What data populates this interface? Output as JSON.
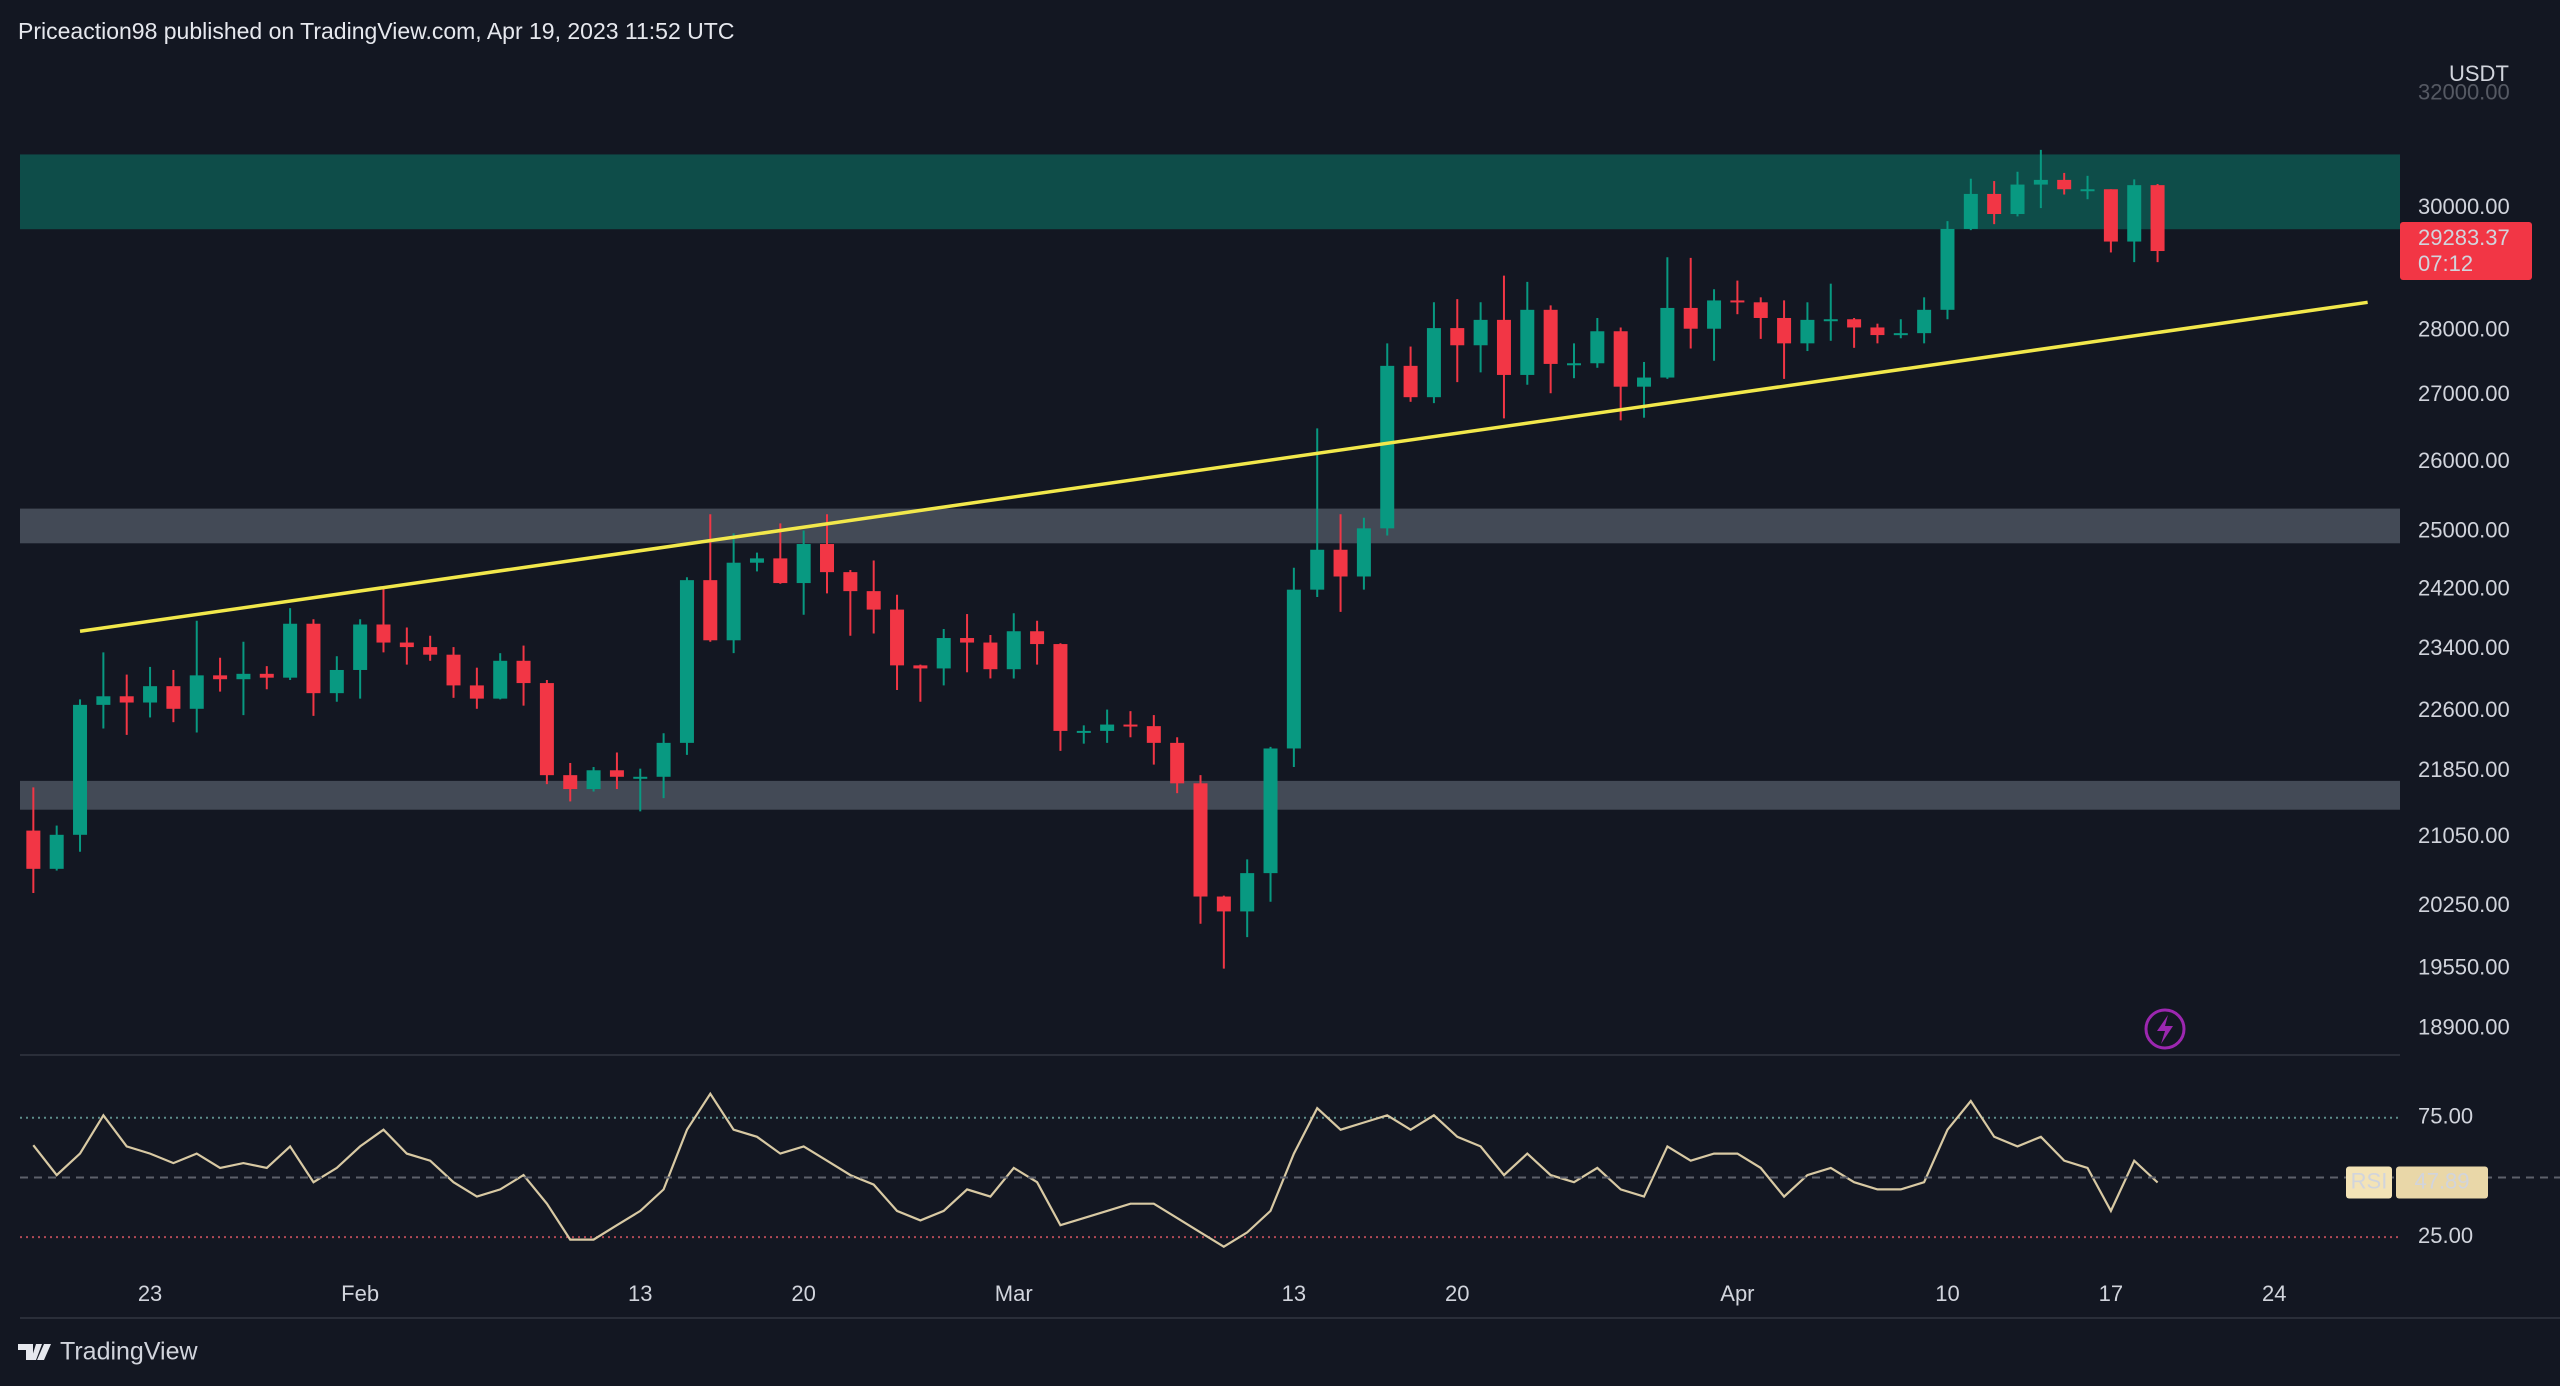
{
  "header": "Priceaction98 published on TradingView.com, Apr 19, 2023 11:52 UTC",
  "footer": "TradingView",
  "chart_data": [
    {
      "type": "candlestick",
      "y_axis_label": "USDT",
      "x": [
        "2023-01-18",
        "2023-01-19",
        "2023-01-20",
        "2023-01-21",
        "2023-01-22",
        "2023-01-23",
        "2023-01-24",
        "2023-01-25",
        "2023-01-26",
        "2023-01-27",
        "2023-01-28",
        "2023-01-29",
        "2023-01-30",
        "2023-01-31",
        "2023-02-01",
        "2023-02-02",
        "2023-02-03",
        "2023-02-04",
        "2023-02-05",
        "2023-02-06",
        "2023-02-07",
        "2023-02-08",
        "2023-02-09",
        "2023-02-10",
        "2023-02-11",
        "2023-02-12",
        "2023-02-13",
        "2023-02-14",
        "2023-02-15",
        "2023-02-16",
        "2023-02-17",
        "2023-02-18",
        "2023-02-19",
        "2023-02-20",
        "2023-02-21",
        "2023-02-22",
        "2023-02-23",
        "2023-02-24",
        "2023-02-25",
        "2023-02-26",
        "2023-02-27",
        "2023-02-28",
        "2023-03-01",
        "2023-03-02",
        "2023-03-03",
        "2023-03-04",
        "2023-03-05",
        "2023-03-06",
        "2023-03-07",
        "2023-03-08",
        "2023-03-09",
        "2023-03-10",
        "2023-03-11",
        "2023-03-12",
        "2023-03-13",
        "2023-03-14",
        "2023-03-15",
        "2023-03-16",
        "2023-03-17",
        "2023-03-18",
        "2023-03-19",
        "2023-03-20",
        "2023-03-21",
        "2023-03-22",
        "2023-03-23",
        "2023-03-24",
        "2023-03-25",
        "2023-03-26",
        "2023-03-27",
        "2023-03-28",
        "2023-03-29",
        "2023-03-30",
        "2023-03-31",
        "2023-04-01",
        "2023-04-02",
        "2023-04-03",
        "2023-04-04",
        "2023-04-05",
        "2023-04-06",
        "2023-04-07",
        "2023-04-08",
        "2023-04-09",
        "2023-04-10",
        "2023-04-11",
        "2023-04-12",
        "2023-04-13",
        "2023-04-14",
        "2023-04-15",
        "2023-04-16",
        "2023-04-17",
        "2023-04-18",
        "2023-04-19"
      ],
      "open": [
        21130,
        20680,
        21080,
        22680,
        22790,
        22710,
        22920,
        22630,
        23060,
        23010,
        23080,
        23030,
        23740,
        22830,
        23130,
        23730,
        23490,
        23430,
        23330,
        22930,
        22760,
        23250,
        22960,
        21800,
        21630,
        21860,
        21780,
        21780,
        22200,
        24330,
        23520,
        24570,
        24630,
        24290,
        24830,
        24440,
        24180,
        23930,
        23190,
        23150,
        23550,
        23490,
        23140,
        23640,
        23470,
        22350,
        22350,
        22430,
        22410,
        22200,
        21700,
        20360,
        20190,
        20630,
        22130,
        24200,
        24750,
        24380,
        25050,
        27450,
        26970,
        28040,
        27770,
        28170,
        27310,
        28330,
        27480,
        27490,
        27990,
        27130,
        27270,
        28360,
        28030,
        28480,
        28450,
        28200,
        27800,
        28170,
        28180,
        28050,
        27930,
        27960,
        28330,
        29650,
        30240,
        29900,
        30400,
        30480,
        30320,
        30320,
        29440,
        30390
      ],
      "high": [
        21650,
        21190,
        22750,
        23360,
        23070,
        23170,
        23130,
        23780,
        23290,
        23500,
        23180,
        23950,
        23800,
        23310,
        23800,
        24250,
        23690,
        23580,
        23430,
        23160,
        23350,
        23450,
        23000,
        21950,
        21900,
        22080,
        21880,
        22320,
        24370,
        25250,
        24980,
        24710,
        25120,
        25020,
        25250,
        24470,
        24600,
        24130,
        23200,
        23670,
        23870,
        23590,
        23880,
        23780,
        23480,
        22420,
        22620,
        22600,
        22550,
        22270,
        21800,
        20370,
        20790,
        22150,
        24500,
        26500,
        25250,
        25200,
        27800,
        27750,
        28450,
        28500,
        28450,
        28880,
        28780,
        28400,
        27800,
        28200,
        28050,
        27510,
        29180,
        29170,
        28660,
        28800,
        28530,
        28480,
        28450,
        28750,
        28200,
        28110,
        28180,
        28530,
        29780,
        30500,
        30460,
        30620,
        31000,
        30600,
        30550,
        30320,
        30490,
        30410
      ],
      "low": [
        20400,
        20660,
        20880,
        22380,
        22300,
        22520,
        22460,
        22330,
        22850,
        22550,
        22880,
        23000,
        22540,
        22720,
        22760,
        23360,
        23200,
        23250,
        22770,
        22630,
        22750,
        22670,
        21690,
        21480,
        21600,
        21630,
        21360,
        21520,
        22050,
        23500,
        23350,
        24450,
        24280,
        23860,
        24150,
        23580,
        23610,
        22870,
        22720,
        22930,
        23100,
        23020,
        23020,
        23200,
        22100,
        22190,
        22200,
        22270,
        21930,
        21580,
        20050,
        19550,
        19900,
        20300,
        21900,
        24100,
        23900,
        24200,
        24950,
        26900,
        26880,
        27200,
        27350,
        26650,
        27160,
        27030,
        27260,
        27420,
        26620,
        26660,
        27250,
        27720,
        27530,
        28260,
        27870,
        27250,
        27680,
        27840,
        27730,
        27800,
        27880,
        27800,
        28180,
        29630,
        29730,
        29860,
        30000,
        30230,
        30150,
        29260,
        29100,
        29100
      ],
      "close": [
        20680,
        21080,
        22680,
        22790,
        22710,
        22920,
        22630,
        23060,
        23010,
        23080,
        23030,
        23740,
        22830,
        23130,
        23730,
        23490,
        23430,
        23330,
        22930,
        22760,
        23250,
        22960,
        21800,
        21630,
        21860,
        21780,
        21780,
        22200,
        24330,
        23520,
        24570,
        24630,
        24290,
        24830,
        24440,
        24180,
        23930,
        23190,
        23150,
        23550,
        23490,
        23140,
        23640,
        23470,
        22350,
        22350,
        22430,
        22410,
        22200,
        21700,
        20360,
        20190,
        20630,
        22130,
        24200,
        24750,
        24380,
        25050,
        27450,
        26970,
        28040,
        27770,
        28170,
        27310,
        28330,
        27480,
        27490,
        27990,
        27130,
        27270,
        28360,
        28030,
        28480,
        28450,
        28200,
        27800,
        28170,
        28180,
        28050,
        27930,
        27960,
        28330,
        29650,
        30240,
        29900,
        30400,
        30480,
        30320,
        30320,
        29440,
        30390,
        29283.37
      ],
      "countdown": "07:12",
      "up_color": "#089981",
      "down_color": "#f23645",
      "xlim": [
        "2023-01-17",
        "2023-04-29"
      ],
      "xticks": [
        {
          "value": "2023-01-23",
          "label": "23"
        },
        {
          "value": "2023-02-01",
          "label": "Feb"
        },
        {
          "value": "2023-02-13",
          "label": "13"
        },
        {
          "value": "2023-02-20",
          "label": "20"
        },
        {
          "value": "2023-03-01",
          "label": "Mar"
        },
        {
          "value": "2023-03-13",
          "label": "13"
        },
        {
          "value": "2023-03-20",
          "label": "20"
        },
        {
          "value": "2023-04-01",
          "label": "Apr"
        },
        {
          "value": "2023-04-10",
          "label": "10"
        },
        {
          "value": "2023-04-17",
          "label": "17"
        },
        {
          "value": "2023-04-24",
          "label": "24"
        }
      ],
      "ylim": [
        18643,
        32517
      ],
      "log_scale": true,
      "grid": false,
      "yticks": [
        {
          "value": 32000,
          "label": "32000.00"
        },
        {
          "value": 30000,
          "label": "30000.00"
        },
        {
          "value": 28000,
          "label": "28000.00"
        },
        {
          "value": 27000,
          "label": "27000.00"
        },
        {
          "value": 26000,
          "label": "26000.00"
        },
        {
          "value": 25000,
          "label": "25000.00"
        },
        {
          "value": 24200,
          "label": "24200.00"
        },
        {
          "value": 23400,
          "label": "23400.00"
        },
        {
          "value": 22600,
          "label": "22600.00"
        },
        {
          "value": 21850,
          "label": "21850.00"
        },
        {
          "value": 21050,
          "label": "21050.00"
        },
        {
          "value": 20250,
          "label": "20250.00"
        },
        {
          "value": 19550,
          "label": "19550.00"
        },
        {
          "value": 18900,
          "label": "18900.00"
        }
      ],
      "zones": [
        {
          "from": 29645,
          "to": 30920,
          "color": "#0e4d49"
        },
        {
          "from": 24840,
          "to": 25330,
          "color": "#434a56"
        },
        {
          "from": 21380,
          "to": 21730,
          "color": "#434a56"
        }
      ],
      "trendline": {
        "x": [
          "2023-01-20",
          "2023-04-28"
        ],
        "y": [
          23640,
          28450
        ],
        "color": "#f2e84b"
      }
    },
    {
      "type": "line",
      "name": "RSI",
      "color": "#d8c9a3",
      "values": [
        63.5,
        51,
        60,
        76,
        63,
        60,
        56,
        60,
        54,
        56,
        54,
        63,
        48,
        54,
        63,
        70,
        60,
        57,
        48,
        42,
        45,
        51,
        39,
        24,
        24,
        30,
        36,
        45,
        70,
        85,
        70,
        67,
        60,
        63,
        57,
        51,
        47,
        36,
        32,
        36,
        45,
        42,
        54,
        48,
        30,
        33,
        36,
        39,
        39,
        33,
        27,
        21,
        27,
        36,
        60,
        79,
        70,
        73,
        76,
        70,
        76,
        67,
        63,
        51,
        60,
        51,
        48,
        54,
        45,
        42,
        63,
        57,
        60,
        60,
        54,
        42,
        51,
        54,
        48,
        45,
        45,
        48,
        70,
        82,
        67,
        63,
        67,
        57,
        54,
        36,
        57,
        47.89
      ],
      "ylim": [
        10,
        100
      ],
      "yticks": [
        {
          "value": 75,
          "label": "75.00"
        },
        {
          "value": 25,
          "label": "25.00"
        }
      ],
      "band_colors": [
        "#5d8e8a",
        "#b24a57"
      ],
      "midline": 50
    }
  ]
}
